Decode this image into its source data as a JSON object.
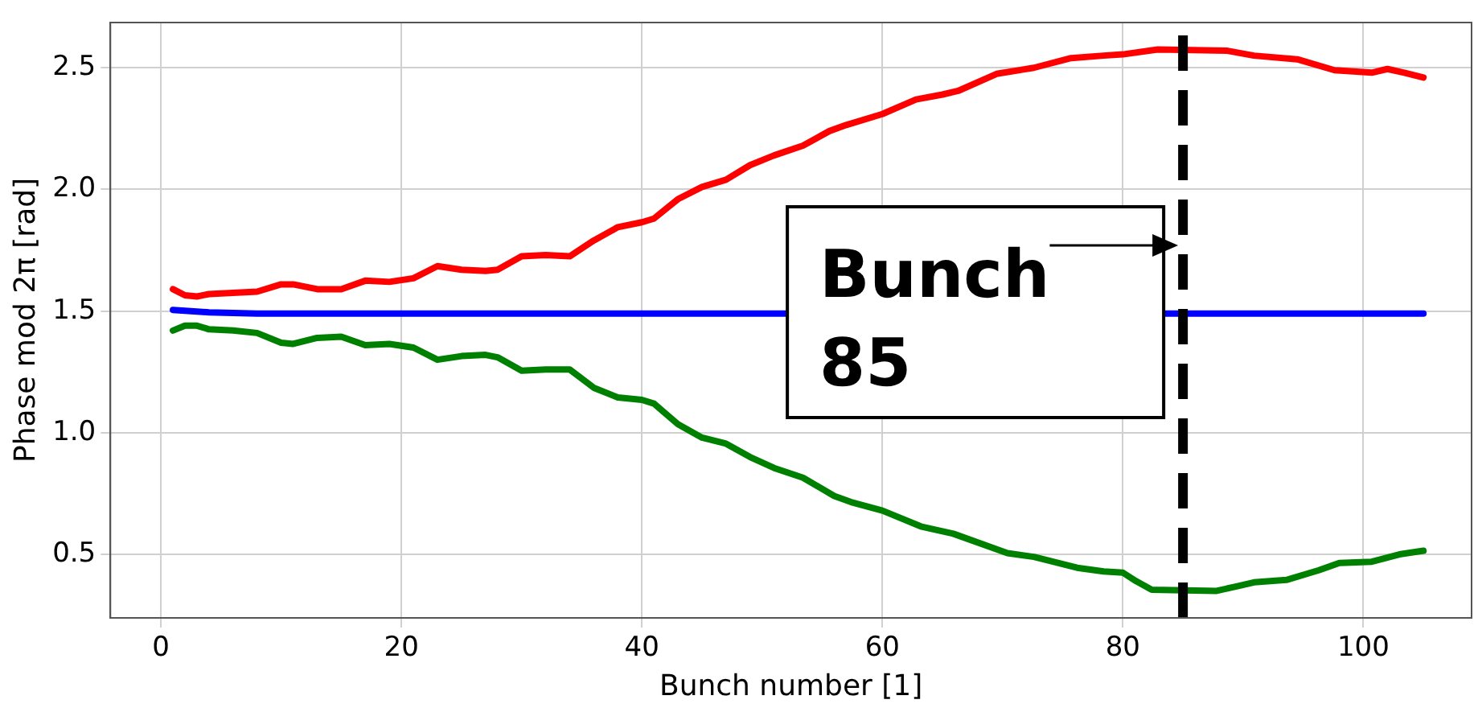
{
  "chart_data": {
    "type": "line",
    "xlabel": "Bunch number [1]",
    "ylabel": "Phase mod 2π [rad]",
    "xlim": [
      -4.2,
      109
    ],
    "ylim": [
      0.239,
      2.686
    ],
    "xticks": [
      0,
      20,
      40,
      60,
      80,
      100
    ],
    "yticks": [
      0.5,
      {
        "value": 1,
        "label": "1.0"
      },
      1.5,
      {
        "value": 2,
        "label": "2.0"
      },
      2.5
    ],
    "grid": true,
    "legend": false,
    "marker": "none",
    "line_style": "solid",
    "series": [
      {
        "color": "#ff0000",
        "x": [
          1,
          2,
          3,
          4,
          8,
          10,
          11,
          13,
          15,
          17,
          19,
          21,
          23,
          25,
          27,
          28,
          30,
          32,
          34,
          36,
          38,
          40,
          41,
          43,
          45,
          47,
          49,
          51,
          53.4,
          55.6,
          57,
          60,
          62.8,
          65,
          66.3,
          69.5,
          72.6,
          75.7,
          78.4,
          80,
          82.9,
          88.7,
          90.9,
          94.5,
          97.6,
          100.7,
          102,
          103.4,
          105
        ],
        "values": [
          1.59,
          1.565,
          1.56,
          1.57,
          1.58,
          1.61,
          1.61,
          1.59,
          1.59,
          1.625,
          1.62,
          1.635,
          1.685,
          1.67,
          1.665,
          1.67,
          1.725,
          1.73,
          1.725,
          1.79,
          1.845,
          1.865,
          1.88,
          1.96,
          2.01,
          2.04,
          2.1,
          2.14,
          2.18,
          2.24,
          2.265,
          2.31,
          2.37,
          2.39,
          2.405,
          2.475,
          2.5,
          2.54,
          2.55,
          2.555,
          2.575,
          2.57,
          2.55,
          2.535,
          2.49,
          2.48,
          2.495,
          2.48,
          2.46
        ]
      },
      {
        "color": "#0000ff",
        "x": [
          1,
          4,
          8,
          105
        ],
        "values": [
          1.505,
          1.495,
          1.49,
          1.49
        ]
      },
      {
        "color": "#008000",
        "x": [
          1,
          2,
          3,
          4,
          6,
          8,
          10,
          11,
          13,
          15,
          17,
          19,
          21,
          23,
          25,
          27,
          28,
          30,
          32,
          34,
          36,
          38,
          40,
          41,
          43,
          45,
          47,
          49,
          51,
          53.4,
          56,
          57.4,
          60,
          63.2,
          65,
          65.9,
          70.4,
          72.6,
          76.2,
          78.4,
          80,
          81.1,
          82.4,
          87.8,
          89.6,
          90.9,
          93.6,
          96.3,
          98,
          100.7,
          103,
          105
        ],
        "values": [
          1.42,
          1.44,
          1.44,
          1.425,
          1.42,
          1.41,
          1.37,
          1.365,
          1.39,
          1.395,
          1.36,
          1.365,
          1.35,
          1.3,
          1.315,
          1.32,
          1.31,
          1.255,
          1.26,
          1.26,
          1.185,
          1.145,
          1.135,
          1.12,
          1.035,
          0.98,
          0.955,
          0.9,
          0.855,
          0.815,
          0.74,
          0.715,
          0.68,
          0.615,
          0.595,
          0.585,
          0.505,
          0.49,
          0.445,
          0.43,
          0.425,
          0.39,
          0.355,
          0.35,
          0.37,
          0.385,
          0.395,
          0.435,
          0.465,
          0.47,
          0.5,
          0.515
        ]
      }
    ],
    "ref_lines": [
      {
        "axis": "x",
        "value": 85,
        "color": "#000000",
        "line_style": "dashed"
      }
    ],
    "annotations": [
      {
        "text": "Bunch\n85",
        "x": 85,
        "y": 1.77
      }
    ]
  }
}
